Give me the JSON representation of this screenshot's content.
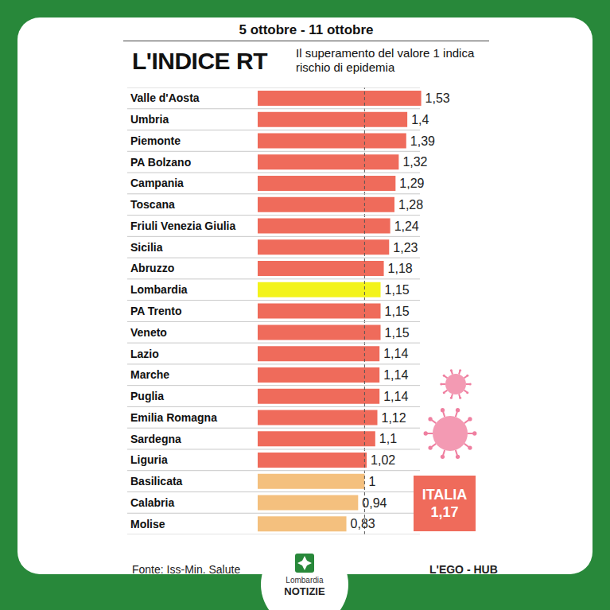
{
  "chart_data": {
    "type": "bar",
    "orientation": "horizontal",
    "header": "5 ottobre - 11 ottobre",
    "title": "L'INDICE RT",
    "subtitle": "Il superamento del valore 1 indica rischio di epidemia",
    "categories": [
      "Valle d'Aosta",
      "Umbria",
      "Piemonte",
      "PA Bolzano",
      "Campania",
      "Toscana",
      "Friuli Venezia Giulia",
      "Sicilia",
      "Abruzzo",
      "Lombardia",
      "PA Trento",
      "Veneto",
      "Lazio",
      "Marche",
      "Puglia",
      "Emilia Romagna",
      "Sardegna",
      "Liguria",
      "Basilicata",
      "Calabria",
      "Molise"
    ],
    "values": [
      1.53,
      1.4,
      1.39,
      1.32,
      1.29,
      1.28,
      1.24,
      1.23,
      1.18,
      1.15,
      1.15,
      1.15,
      1.14,
      1.14,
      1.14,
      1.12,
      1.1,
      1.02,
      1,
      0.94,
      0.83
    ],
    "value_labels": [
      "1,53",
      "1,4",
      "1,39",
      "1,32",
      "1,29",
      "1,28",
      "1,24",
      "1,23",
      "1,18",
      "1,15",
      "1,15",
      "1,15",
      "1,14",
      "1,14",
      "1,14",
      "1,12",
      "1,1",
      "1,02",
      "1",
      "0,94",
      "0,83"
    ],
    "colors": [
      "#ef6b5b",
      "#ef6b5b",
      "#ef6b5b",
      "#ef6b5b",
      "#ef6b5b",
      "#ef6b5b",
      "#ef6b5b",
      "#ef6b5b",
      "#ef6b5b",
      "#f3f31a",
      "#ef6b5b",
      "#ef6b5b",
      "#ef6b5b",
      "#ef6b5b",
      "#ef6b5b",
      "#ef6b5b",
      "#ef6b5b",
      "#ef6b5b",
      "#f4c07e",
      "#f4c07e",
      "#f4c07e"
    ],
    "xlim": [
      0,
      1.6
    ],
    "threshold": 1,
    "data_labels": true,
    "tick_labels": "y",
    "grid": true,
    "national": {
      "name": "ITALIA",
      "value_label": "1,17"
    },
    "source": "Fonte: Iss-Min. Salute",
    "credit": "L'EGO - HUB",
    "logo": [
      "Lombardia",
      "NOTIZIE"
    ]
  }
}
